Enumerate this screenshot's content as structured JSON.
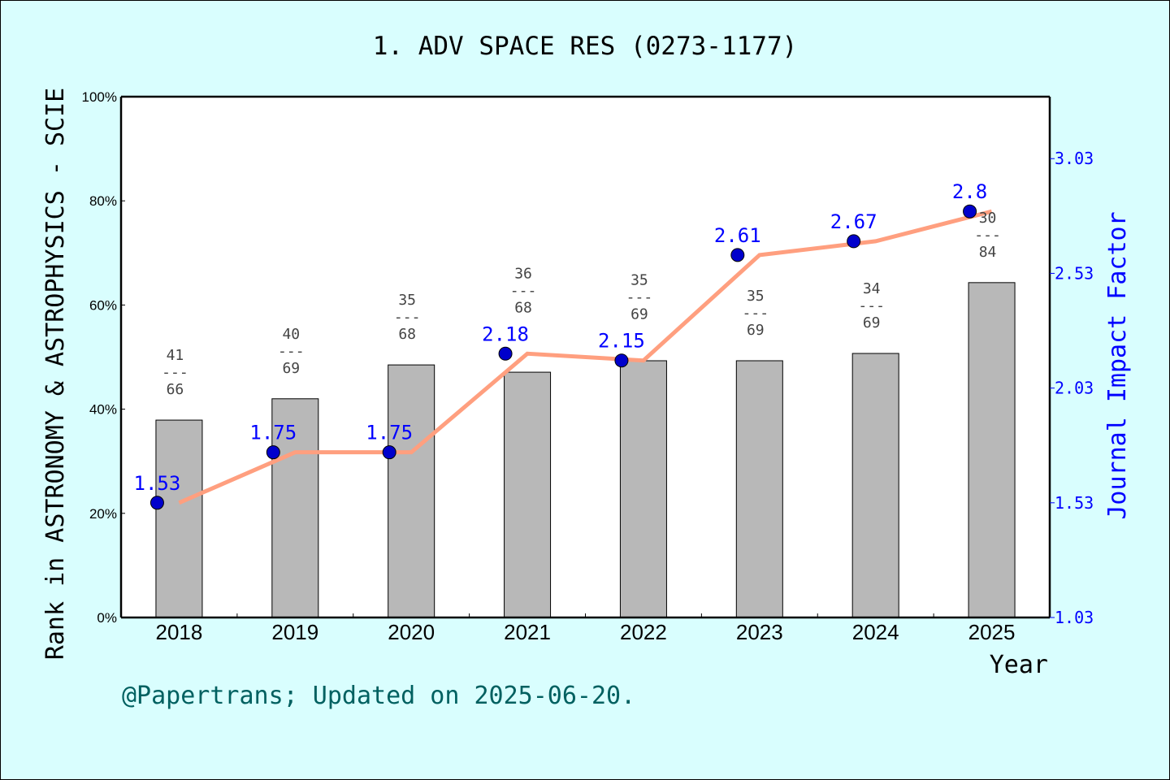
{
  "chart_data": {
    "type": "bar+line",
    "title": "1. ADV SPACE RES (0273-1177)",
    "xlabel": "Year",
    "ylabel": "Rank in ASTRONOMY & ASTROPHYSICS - SCIE",
    "y2label": "Journal Impact Factor",
    "categories": [
      "2018",
      "2019",
      "2020",
      "2021",
      "2022",
      "2023",
      "2024",
      "2025"
    ],
    "ylim": [
      0,
      100
    ],
    "yticks": [
      "0%",
      "20%",
      "40%",
      "60%",
      "80%",
      "100%"
    ],
    "y2lim": [
      1.03,
      3.3
    ],
    "y2ticks": [
      "1.03",
      "1.53",
      "2.03",
      "2.53",
      "3.03"
    ],
    "ranks": [
      41,
      40,
      35,
      36,
      35,
      35,
      34,
      30
    ],
    "totals": [
      66,
      69,
      68,
      68,
      69,
      69,
      69,
      84
    ],
    "rank_separator": "---",
    "bar_values_percent": [
      37.9,
      42.0,
      48.5,
      47.1,
      49.3,
      49.3,
      50.7,
      64.3
    ],
    "impact_factor": [
      1.53,
      1.75,
      1.75,
      2.18,
      2.15,
      2.61,
      2.67,
      2.8
    ],
    "impact_factor_labels": [
      "1.53",
      "1.75",
      "1.75",
      "2.18",
      "2.15",
      "2.61",
      "2.67",
      "2.8"
    ],
    "grid": false,
    "colors": {
      "background": "#d9fefe",
      "bar": "#b8b8b8",
      "line": "#ff9f7f",
      "point": "#0000cc",
      "if_text": "#0000ff",
      "footer": "#006060"
    }
  },
  "footer": "@Papertrans; Updated on 2025-06-20."
}
